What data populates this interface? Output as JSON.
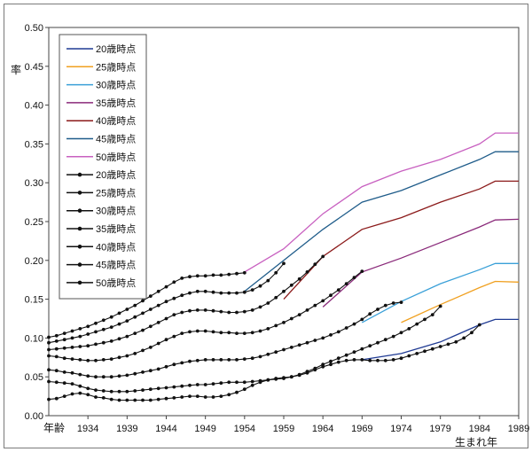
{
  "chart_data": {
    "type": "line",
    "title": "",
    "ylabel": "率",
    "xlabel_start": "年齢",
    "xlabel": "生まれ年",
    "xlim": [
      1929,
      1989
    ],
    "ylim": [
      0,
      0.5
    ],
    "x_ticks": [
      "1934",
      "1939",
      "1944",
      "1949",
      "1954",
      "1959",
      "1964",
      "1969",
      "1974",
      "1979",
      "1984",
      "1989"
    ],
    "y_ticks": [
      "0.00",
      "0.05",
      "0.10",
      "0.15",
      "0.20",
      "0.25",
      "0.30",
      "0.35",
      "0.40",
      "0.45",
      "0.50"
    ],
    "grid": false,
    "legend_position": "top-left",
    "line_series": [
      {
        "name": "20歳時点",
        "color": "#1f3a93",
        "start_x": 1969,
        "end_x": 1989,
        "points": [
          [
            1969,
            0.072
          ],
          [
            1974,
            0.08
          ],
          [
            1979,
            0.095
          ],
          [
            1984,
            0.117
          ],
          [
            1986,
            0.124
          ],
          [
            1989,
            0.124
          ]
        ]
      },
      {
        "name": "25歳時点",
        "color": "#f0a020",
        "start_x": 1974,
        "end_x": 1989,
        "points": [
          [
            1974,
            0.12
          ],
          [
            1979,
            0.143
          ],
          [
            1984,
            0.165
          ],
          [
            1986,
            0.173
          ],
          [
            1989,
            0.172
          ]
        ]
      },
      {
        "name": "30歳時点",
        "color": "#3aa0d8",
        "start_x": 1969,
        "end_x": 1989,
        "points": [
          [
            1969,
            0.12
          ],
          [
            1974,
            0.147
          ],
          [
            1979,
            0.17
          ],
          [
            1984,
            0.188
          ],
          [
            1986,
            0.196
          ],
          [
            1989,
            0.196
          ]
        ]
      },
      {
        "name": "35歳時点",
        "color": "#8a2a7a",
        "start_x": 1964,
        "end_x": 1989,
        "points": [
          [
            1964,
            0.14
          ],
          [
            1969,
            0.185
          ],
          [
            1974,
            0.203
          ],
          [
            1979,
            0.223
          ],
          [
            1984,
            0.243
          ],
          [
            1986,
            0.252
          ],
          [
            1989,
            0.253
          ]
        ]
      },
      {
        "name": "40歳時点",
        "color": "#8b1a1a",
        "start_x": 1959,
        "end_x": 1989,
        "points": [
          [
            1959,
            0.15
          ],
          [
            1964,
            0.205
          ],
          [
            1969,
            0.24
          ],
          [
            1974,
            0.255
          ],
          [
            1979,
            0.275
          ],
          [
            1984,
            0.292
          ],
          [
            1986,
            0.302
          ],
          [
            1989,
            0.302
          ]
        ]
      },
      {
        "name": "45歳時点",
        "color": "#1f5c8a",
        "start_x": 1954,
        "end_x": 1989,
        "points": [
          [
            1954,
            0.16
          ],
          [
            1959,
            0.2
          ],
          [
            1964,
            0.24
          ],
          [
            1969,
            0.275
          ],
          [
            1974,
            0.29
          ],
          [
            1979,
            0.31
          ],
          [
            1984,
            0.33
          ],
          [
            1986,
            0.34
          ],
          [
            1989,
            0.34
          ]
        ]
      },
      {
        "name": "50歳時点",
        "color": "#c860c0",
        "start_x": 1954,
        "end_x": 1989,
        "points": [
          [
            1954,
            0.185
          ],
          [
            1959,
            0.215
          ],
          [
            1964,
            0.26
          ],
          [
            1969,
            0.295
          ],
          [
            1974,
            0.315
          ],
          [
            1979,
            0.33
          ],
          [
            1984,
            0.35
          ],
          [
            1986,
            0.364
          ],
          [
            1989,
            0.364
          ]
        ]
      }
    ],
    "marker_series": [
      {
        "name": "20歳時点",
        "color": "#111111",
        "x": [
          1929,
          1930,
          1931,
          1932,
          1933,
          1934,
          1935,
          1936,
          1937,
          1938,
          1939,
          1940,
          1941,
          1942,
          1943,
          1944,
          1945,
          1946,
          1947,
          1948,
          1949,
          1950,
          1951,
          1952,
          1953,
          1954,
          1955,
          1956,
          1957,
          1958,
          1959,
          1960,
          1961,
          1962,
          1963,
          1964,
          1965,
          1966,
          1967,
          1968,
          1969,
          1970,
          1971,
          1972,
          1973,
          1974,
          1975,
          1976,
          1977,
          1978,
          1979,
          1980,
          1981,
          1982,
          1983,
          1984
        ],
        "y": [
          0.021,
          0.022,
          0.025,
          0.028,
          0.029,
          0.027,
          0.024,
          0.023,
          0.021,
          0.02,
          0.02,
          0.02,
          0.02,
          0.02,
          0.021,
          0.022,
          0.023,
          0.024,
          0.025,
          0.025,
          0.024,
          0.024,
          0.025,
          0.027,
          0.03,
          0.034,
          0.039,
          0.043,
          0.046,
          0.048,
          0.049,
          0.05,
          0.052,
          0.055,
          0.059,
          0.063,
          0.066,
          0.069,
          0.071,
          0.072,
          0.072,
          0.071,
          0.071,
          0.071,
          0.072,
          0.074,
          0.077,
          0.08,
          0.083,
          0.086,
          0.089,
          0.092,
          0.095,
          0.1,
          0.107,
          0.117
        ]
      },
      {
        "name": "25歳時点",
        "color": "#111111",
        "x": [
          1929,
          1930,
          1931,
          1932,
          1933,
          1934,
          1935,
          1936,
          1937,
          1938,
          1939,
          1940,
          1941,
          1942,
          1943,
          1944,
          1945,
          1946,
          1947,
          1948,
          1949,
          1950,
          1951,
          1952,
          1953,
          1954,
          1955,
          1956,
          1957,
          1958,
          1959,
          1960,
          1961,
          1962,
          1963,
          1964,
          1965,
          1966,
          1967,
          1968,
          1969,
          1970,
          1971,
          1972,
          1973,
          1974,
          1975,
          1976,
          1977,
          1978,
          1979
        ],
        "y": [
          0.044,
          0.043,
          0.042,
          0.041,
          0.038,
          0.035,
          0.033,
          0.032,
          0.031,
          0.031,
          0.031,
          0.032,
          0.033,
          0.034,
          0.035,
          0.036,
          0.037,
          0.038,
          0.039,
          0.04,
          0.04,
          0.041,
          0.042,
          0.043,
          0.043,
          0.043,
          0.044,
          0.045,
          0.046,
          0.047,
          0.048,
          0.05,
          0.053,
          0.057,
          0.061,
          0.066,
          0.07,
          0.074,
          0.078,
          0.082,
          0.086,
          0.09,
          0.094,
          0.098,
          0.102,
          0.107,
          0.112,
          0.118,
          0.124,
          0.13,
          0.141
        ]
      },
      {
        "name": "30歳時点",
        "color": "#111111",
        "x": [
          1929,
          1930,
          1931,
          1932,
          1933,
          1934,
          1935,
          1936,
          1937,
          1938,
          1939,
          1940,
          1941,
          1942,
          1943,
          1944,
          1945,
          1946,
          1947,
          1948,
          1949,
          1950,
          1951,
          1952,
          1953,
          1954,
          1955,
          1956,
          1957,
          1958,
          1959,
          1960,
          1961,
          1962,
          1963,
          1964,
          1965,
          1966,
          1967,
          1968,
          1969,
          1970,
          1971,
          1972,
          1973,
          1974
        ],
        "y": [
          0.059,
          0.058,
          0.056,
          0.055,
          0.053,
          0.051,
          0.05,
          0.05,
          0.05,
          0.051,
          0.052,
          0.054,
          0.056,
          0.058,
          0.06,
          0.063,
          0.066,
          0.068,
          0.07,
          0.071,
          0.072,
          0.072,
          0.072,
          0.072,
          0.072,
          0.073,
          0.074,
          0.076,
          0.079,
          0.082,
          0.085,
          0.088,
          0.091,
          0.094,
          0.097,
          0.1,
          0.104,
          0.108,
          0.113,
          0.118,
          0.124,
          0.131,
          0.137,
          0.142,
          0.145,
          0.146
        ]
      },
      {
        "name": "35歳時点",
        "color": "#111111",
        "x": [
          1929,
          1930,
          1931,
          1932,
          1933,
          1934,
          1935,
          1936,
          1937,
          1938,
          1939,
          1940,
          1941,
          1942,
          1943,
          1944,
          1945,
          1946,
          1947,
          1948,
          1949,
          1950,
          1951,
          1952,
          1953,
          1954,
          1955,
          1956,
          1957,
          1958,
          1959,
          1960,
          1961,
          1962,
          1963,
          1964,
          1965,
          1966,
          1967,
          1968,
          1969
        ],
        "y": [
          0.077,
          0.076,
          0.074,
          0.073,
          0.072,
          0.071,
          0.071,
          0.072,
          0.073,
          0.075,
          0.077,
          0.08,
          0.084,
          0.088,
          0.093,
          0.098,
          0.102,
          0.106,
          0.108,
          0.109,
          0.109,
          0.108,
          0.107,
          0.107,
          0.106,
          0.106,
          0.107,
          0.109,
          0.112,
          0.116,
          0.12,
          0.125,
          0.13,
          0.136,
          0.142,
          0.148,
          0.155,
          0.162,
          0.17,
          0.178,
          0.186
        ]
      },
      {
        "name": "40歳時点",
        "color": "#111111",
        "x": [
          1929,
          1930,
          1931,
          1932,
          1933,
          1934,
          1935,
          1936,
          1937,
          1938,
          1939,
          1940,
          1941,
          1942,
          1943,
          1944,
          1945,
          1946,
          1947,
          1948,
          1949,
          1950,
          1951,
          1952,
          1953,
          1954,
          1955,
          1956,
          1957,
          1958,
          1959,
          1960,
          1961,
          1962,
          1963,
          1964
        ],
        "y": [
          0.085,
          0.086,
          0.087,
          0.088,
          0.089,
          0.09,
          0.092,
          0.094,
          0.096,
          0.099,
          0.102,
          0.106,
          0.11,
          0.115,
          0.12,
          0.125,
          0.13,
          0.133,
          0.135,
          0.136,
          0.136,
          0.135,
          0.134,
          0.133,
          0.133,
          0.134,
          0.136,
          0.14,
          0.145,
          0.152,
          0.16,
          0.168,
          0.176,
          0.185,
          0.195,
          0.205
        ]
      },
      {
        "name": "45歳時点",
        "color": "#111111",
        "x": [
          1929,
          1930,
          1931,
          1932,
          1933,
          1934,
          1935,
          1936,
          1937,
          1938,
          1939,
          1940,
          1941,
          1942,
          1943,
          1944,
          1945,
          1946,
          1947,
          1948,
          1949,
          1950,
          1951,
          1952,
          1953,
          1954,
          1955,
          1956,
          1957,
          1958,
          1959
        ],
        "y": [
          0.094,
          0.096,
          0.098,
          0.1,
          0.102,
          0.105,
          0.108,
          0.111,
          0.114,
          0.118,
          0.122,
          0.127,
          0.132,
          0.137,
          0.142,
          0.147,
          0.151,
          0.155,
          0.158,
          0.16,
          0.16,
          0.159,
          0.158,
          0.158,
          0.158,
          0.159,
          0.162,
          0.167,
          0.174,
          0.184,
          0.196
        ]
      },
      {
        "name": "50歳時点",
        "color": "#111111",
        "x": [
          1929,
          1930,
          1931,
          1932,
          1933,
          1934,
          1935,
          1936,
          1937,
          1938,
          1939,
          1940,
          1941,
          1942,
          1943,
          1944,
          1945,
          1946,
          1947,
          1948,
          1949,
          1950,
          1951,
          1952,
          1953,
          1954
        ],
        "y": [
          0.101,
          0.103,
          0.106,
          0.109,
          0.112,
          0.115,
          0.119,
          0.123,
          0.127,
          0.132,
          0.137,
          0.142,
          0.148,
          0.154,
          0.16,
          0.166,
          0.172,
          0.177,
          0.179,
          0.18,
          0.18,
          0.181,
          0.181,
          0.182,
          0.183,
          0.184
        ]
      }
    ]
  }
}
